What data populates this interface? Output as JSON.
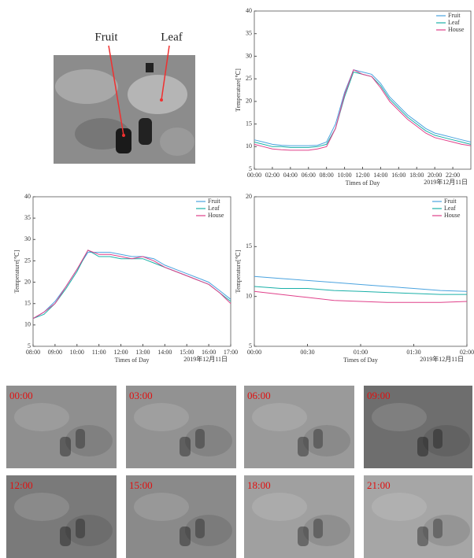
{
  "chart_data": [
    {
      "type": "line",
      "x_label": "Times of Day",
      "y_label": "Temperature[℃]",
      "date_label": "2019年12月11日",
      "x": [
        0,
        1,
        2,
        3,
        4,
        5,
        6,
        7,
        8,
        9,
        10,
        11,
        12,
        13,
        14,
        15,
        16,
        17,
        18,
        19,
        20,
        21,
        22,
        23,
        24
      ],
      "xlim": [
        0,
        24
      ],
      "xticks": [
        {
          "value": 0,
          "label": "00:00"
        },
        {
          "value": 2,
          "label": "02:00"
        },
        {
          "value": 4,
          "label": "04:00"
        },
        {
          "value": 6,
          "label": "06:00"
        },
        {
          "value": 8,
          "label": "08:00"
        },
        {
          "value": 10,
          "label": "10:00"
        },
        {
          "value": 12,
          "label": "12:00"
        },
        {
          "value": 14,
          "label": "14:00"
        },
        {
          "value": 16,
          "label": "16:00"
        },
        {
          "value": 18,
          "label": "18:00"
        },
        {
          "value": 20,
          "label": "20:00"
        },
        {
          "value": 22,
          "label": "22:00"
        }
      ],
      "ylim": [
        5,
        40
      ],
      "yticks": [
        5,
        10,
        15,
        20,
        25,
        30,
        35,
        40
      ],
      "legend": "upper right",
      "series": [
        {
          "name": "Fruit",
          "color": "#4aa3df",
          "values": [
            11.5,
            11,
            10.5,
            10.3,
            10.2,
            10.2,
            10.2,
            10.3,
            11,
            15,
            22,
            27,
            26.5,
            26,
            24,
            21,
            19,
            17,
            15.5,
            14,
            13,
            12.5,
            12,
            11.5,
            11
          ]
        },
        {
          "name": "Leaf",
          "color": "#1ab0a8",
          "values": [
            11,
            10.5,
            10,
            10,
            9.8,
            9.8,
            9.8,
            10,
            10.5,
            14,
            21,
            26.5,
            26,
            25.5,
            23.5,
            20.5,
            18.5,
            16.5,
            15,
            13.5,
            12.5,
            12,
            11.5,
            11,
            10.5
          ]
        },
        {
          "name": "House",
          "color": "#e0408a",
          "values": [
            10.5,
            10,
            9.5,
            9.3,
            9.2,
            9.2,
            9.2,
            9.5,
            10,
            14,
            21.5,
            27,
            26,
            25.5,
            23,
            20,
            18,
            16,
            14.5,
            13,
            12,
            11.5,
            11,
            10.5,
            10.2
          ]
        }
      ]
    },
    {
      "type": "line",
      "x_label": "Times of Day",
      "y_label": "Temperature[℃]",
      "date_label": "2019年12月11日",
      "x": [
        8,
        8.5,
        9,
        9.5,
        10,
        10.5,
        11,
        11.5,
        12,
        12.5,
        13,
        13.5,
        14,
        14.5,
        15,
        15.5,
        16,
        16.5,
        17
      ],
      "xlim": [
        8,
        17
      ],
      "xticks": [
        {
          "value": 8,
          "label": "08:00"
        },
        {
          "value": 9,
          "label": "09:00"
        },
        {
          "value": 10,
          "label": "10:00"
        },
        {
          "value": 11,
          "label": "11:00"
        },
        {
          "value": 12,
          "label": "12:00"
        },
        {
          "value": 13,
          "label": "13:00"
        },
        {
          "value": 14,
          "label": "14:00"
        },
        {
          "value": 15,
          "label": "15:00"
        },
        {
          "value": 16,
          "label": "16:00"
        },
        {
          "value": 17,
          "label": "17:00"
        }
      ],
      "ylim": [
        5,
        40
      ],
      "yticks": [
        5,
        10,
        15,
        20,
        25,
        30,
        35,
        40
      ],
      "legend": "upper right",
      "series": [
        {
          "name": "Fruit",
          "color": "#4aa3df",
          "values": [
            11.5,
            13,
            15.5,
            19,
            23,
            27,
            27,
            27,
            26.5,
            26,
            26,
            25.5,
            24,
            23,
            22,
            21,
            20,
            18,
            16
          ]
        },
        {
          "name": "Leaf",
          "color": "#1ab0a8",
          "values": [
            11.5,
            12.5,
            15,
            18.5,
            22.5,
            27.5,
            26,
            26,
            25.5,
            25.5,
            25.5,
            24.5,
            23.5,
            22.5,
            21.5,
            20.5,
            19.5,
            17.5,
            15.5
          ]
        },
        {
          "name": "House",
          "color": "#e0408a",
          "values": [
            11.5,
            13,
            15,
            19,
            23,
            27.5,
            26.5,
            26.5,
            26,
            25.5,
            26,
            25,
            23.5,
            22.5,
            21.5,
            20.5,
            19.5,
            17.5,
            15
          ]
        }
      ]
    },
    {
      "type": "line",
      "x_label": "Times of Day",
      "y_label": "Temperature[℃]",
      "date_label": "2019年12月11日",
      "x": [
        0,
        0.25,
        0.5,
        0.75,
        1,
        1.25,
        1.5,
        1.75,
        2
      ],
      "xlim": [
        0,
        2
      ],
      "xticks": [
        {
          "value": 0,
          "label": "00:00"
        },
        {
          "value": 0.5,
          "label": "00:30"
        },
        {
          "value": 1,
          "label": "01:00"
        },
        {
          "value": 1.5,
          "label": "01:30"
        },
        {
          "value": 2,
          "label": "02:00"
        }
      ],
      "ylim": [
        5,
        20
      ],
      "yticks": [
        5,
        10,
        15,
        20
      ],
      "legend": "upper right",
      "series": [
        {
          "name": "Fruit",
          "color": "#4aa3df",
          "values": [
            12,
            11.8,
            11.6,
            11.4,
            11.2,
            11,
            10.8,
            10.6,
            10.5
          ]
        },
        {
          "name": "Leaf",
          "color": "#1ab0a8",
          "values": [
            11,
            10.8,
            10.8,
            10.6,
            10.5,
            10.4,
            10.3,
            10.2,
            10.2
          ]
        },
        {
          "name": "House",
          "color": "#e0408a",
          "values": [
            10.5,
            10.2,
            9.9,
            9.6,
            9.5,
            9.4,
            9.4,
            9.4,
            9.5
          ]
        }
      ]
    }
  ],
  "image_labels": [
    "Fruit",
    "Leaf"
  ],
  "thumbnails": [
    "00:00",
    "03:00",
    "06:00",
    "09:00",
    "12:00",
    "15:00",
    "18:00",
    "21:00"
  ]
}
